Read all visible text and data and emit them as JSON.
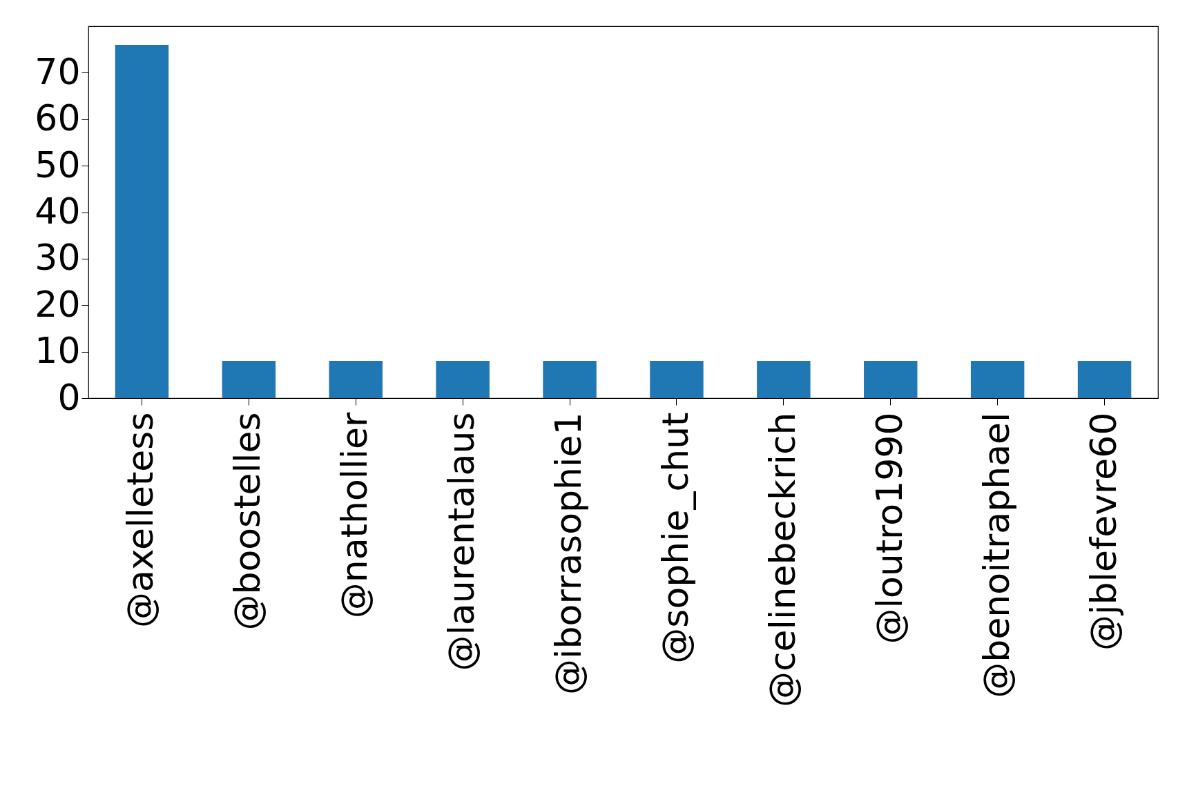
{
  "chart_data": {
    "type": "bar",
    "categories": [
      "@axelletess",
      "@boostelles",
      "@nathollier",
      "@laurentalaus",
      "@iborrasophie1",
      "@sophie_chut",
      "@celinebeckrich",
      "@loutro1990",
      "@benoitraphael",
      "@jblefevre60"
    ],
    "values": [
      76,
      8,
      8,
      8,
      8,
      8,
      8,
      8,
      8,
      8
    ],
    "color": "#1f77b4",
    "ylim": [
      0,
      80
    ],
    "yticks": [
      0,
      10,
      20,
      30,
      40,
      50,
      60,
      70
    ],
    "grid": false
  }
}
